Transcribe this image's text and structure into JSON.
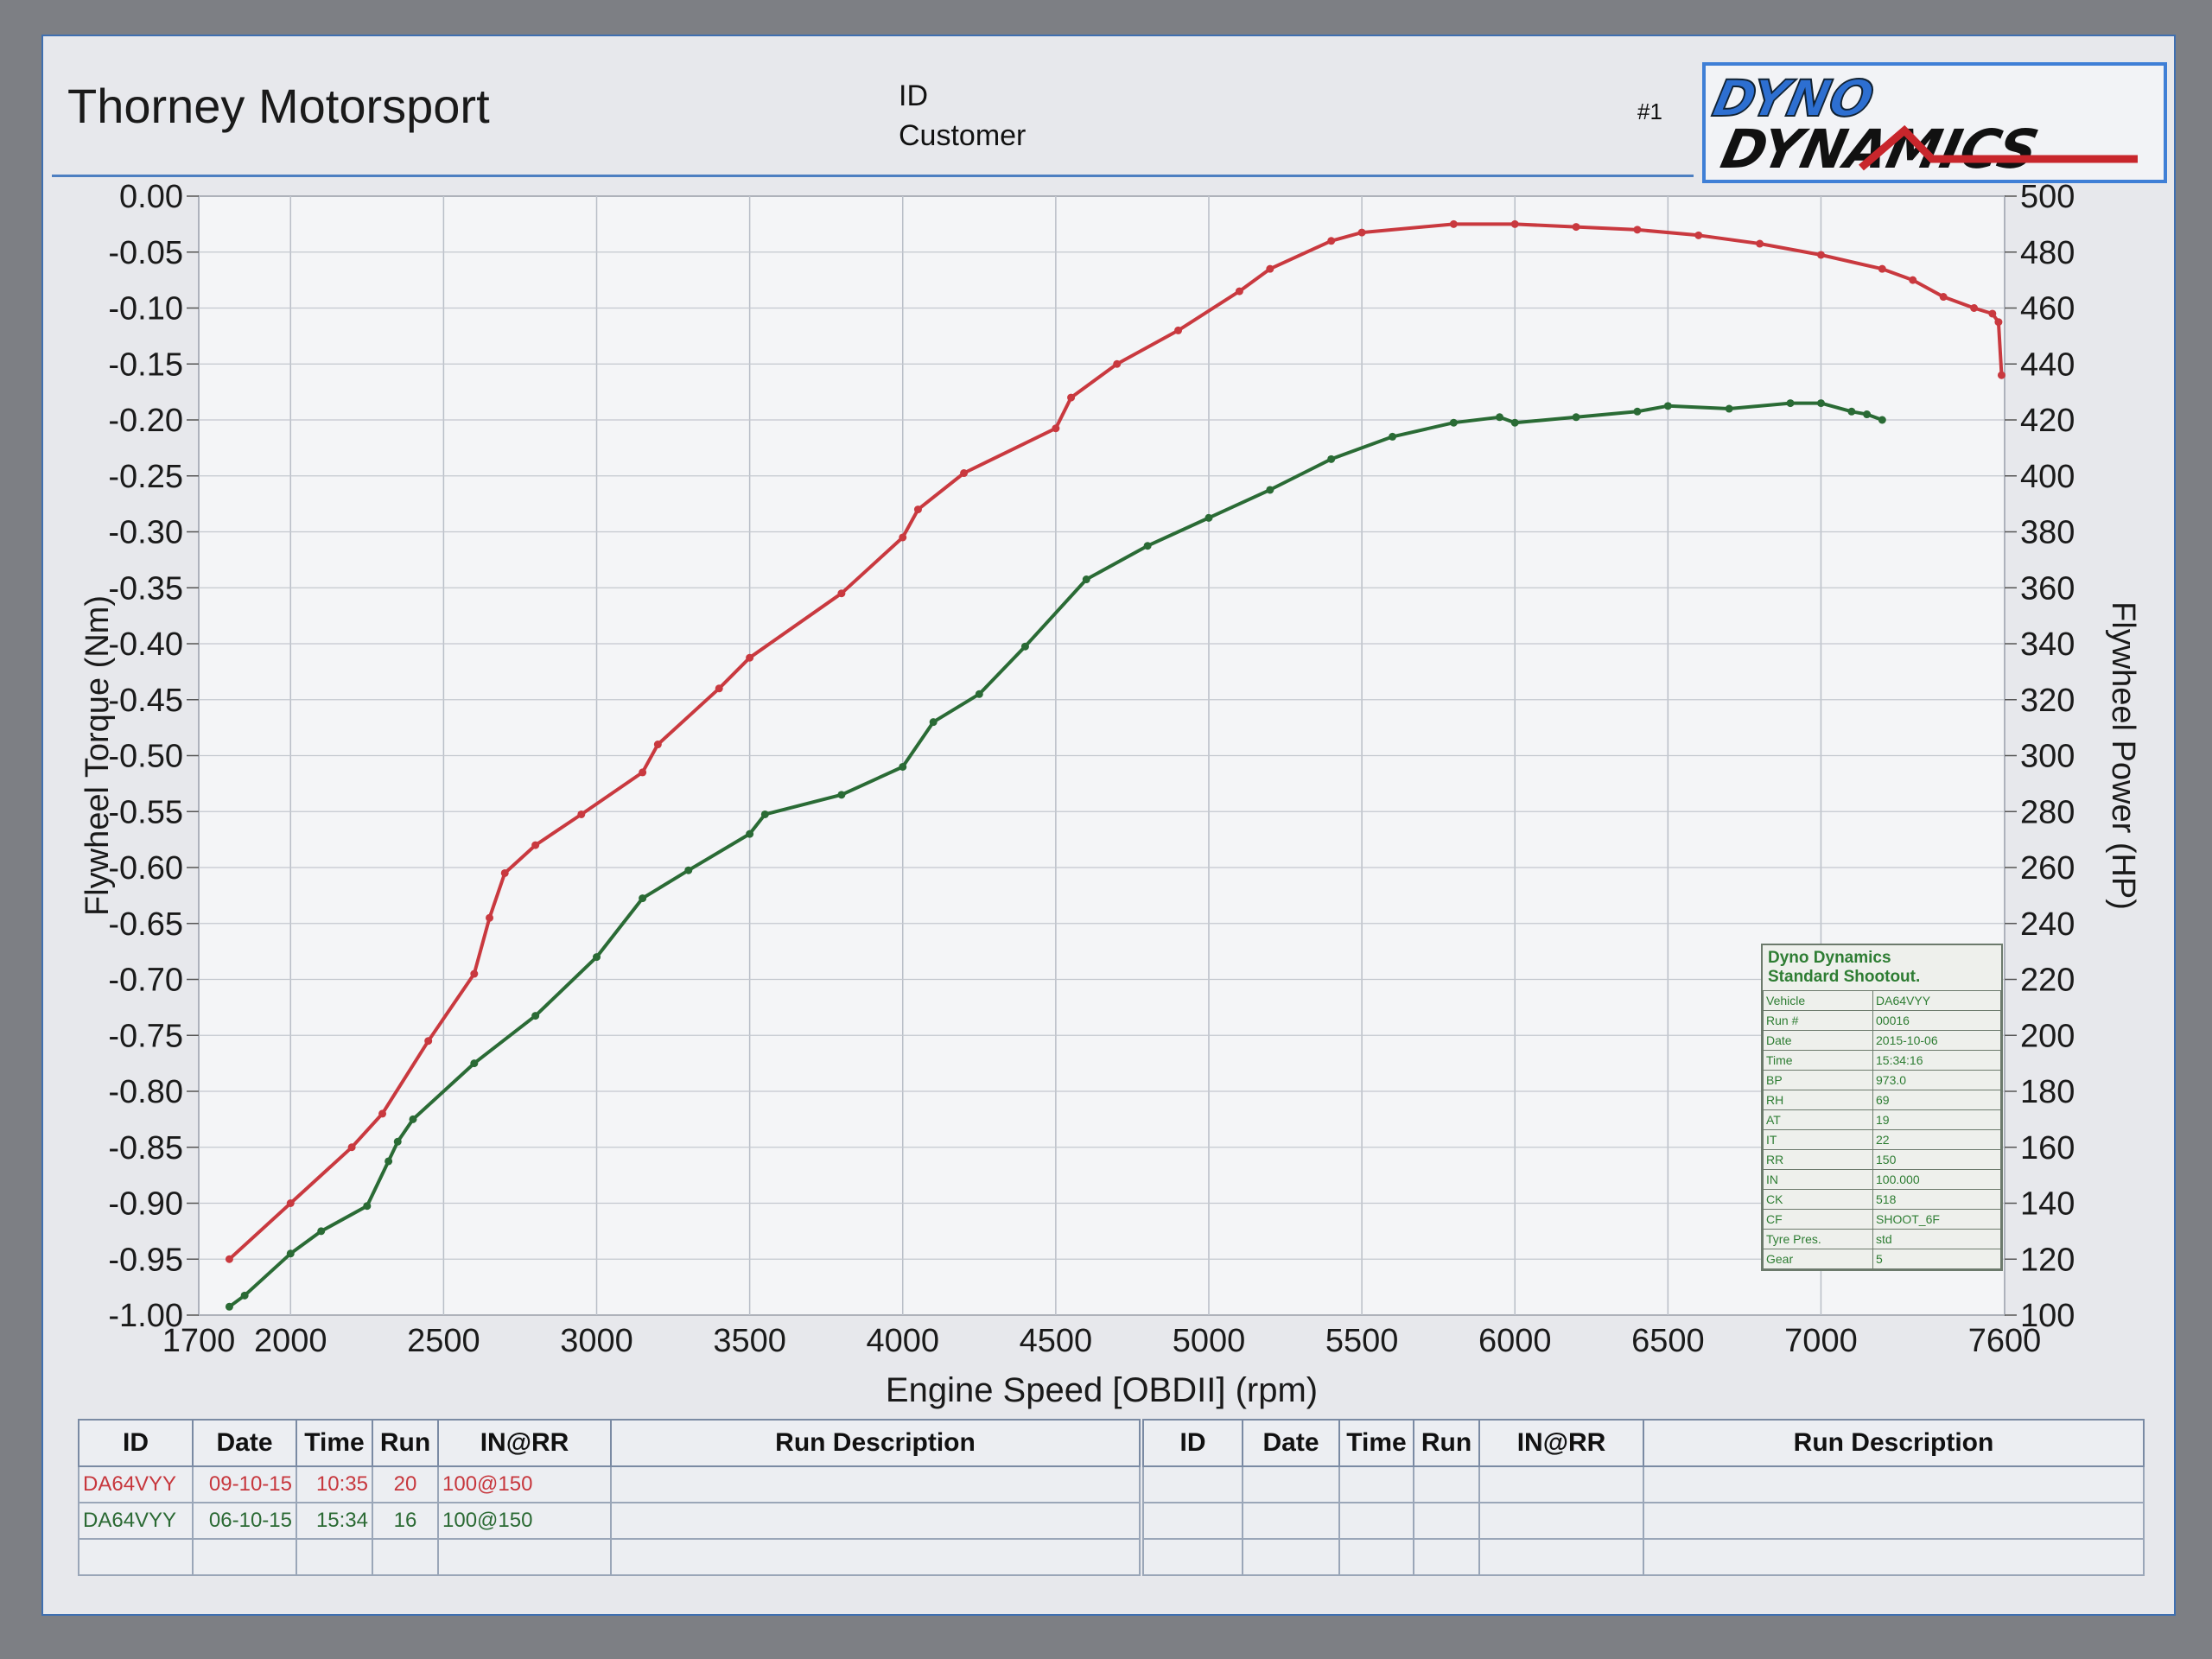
{
  "header": {
    "company": "Thorney Motorsport",
    "id_label": "ID",
    "customer_label": "Customer",
    "run_no": "#1",
    "logo_line1": "DYNO",
    "logo_line2": "DYNAMICS"
  },
  "chart_data": {
    "type": "line",
    "xlabel": "Engine Speed [OBDII] (rpm)",
    "ylabel_left": "Flywheel Torque (Nm)",
    "ylabel_right": "Flywheel Power (HP)",
    "xlim": [
      1700,
      7600
    ],
    "x_ticks": [
      1700,
      2000,
      2500,
      3000,
      3500,
      4000,
      4500,
      5000,
      5500,
      6000,
      6500,
      7000,
      7600
    ],
    "ylim_left": [
      -1.0,
      0.0
    ],
    "y_ticks_left": [
      "0.00",
      "-0.05",
      "-0.10",
      "-0.15",
      "-0.20",
      "-0.25",
      "-0.30",
      "-0.35",
      "-0.40",
      "-0.45",
      "-0.50",
      "-0.55",
      "-0.60",
      "-0.65",
      "-0.70",
      "-0.75",
      "-0.80",
      "-0.85",
      "-0.90",
      "-0.95",
      "-1.00"
    ],
    "ylim_right": [
      100,
      500
    ],
    "y_ticks_right": [
      500,
      480,
      460,
      440,
      420,
      400,
      380,
      360,
      340,
      320,
      300,
      280,
      260,
      240,
      220,
      200,
      180,
      160,
      140,
      120,
      100
    ],
    "grid": true,
    "series": [
      {
        "color": "#c9393f",
        "axis": "right",
        "x": [
          1800,
          2000,
          2200,
          2300,
          2450,
          2600,
          2650,
          2700,
          2800,
          2950,
          3150,
          3200,
          3400,
          3500,
          3800,
          4000,
          4050,
          4200,
          4500,
          4550,
          4700,
          4900,
          5100,
          5200,
          5400,
          5500,
          5800,
          6000,
          6200,
          6400,
          6600,
          6800,
          7000,
          7200,
          7300,
          7400,
          7500,
          7560,
          7580,
          7590
        ],
        "y": [
          120,
          140,
          160,
          172,
          198,
          222,
          242,
          258,
          268,
          279,
          294,
          304,
          324,
          335,
          358,
          378,
          388,
          401,
          417,
          428,
          440,
          452,
          466,
          474,
          484,
          487,
          490,
          490,
          489,
          488,
          486,
          483,
          479,
          474,
          470,
          464,
          460,
          458,
          455,
          436
        ]
      },
      {
        "color": "#2a6b35",
        "axis": "right",
        "x": [
          1800,
          1850,
          2000,
          2100,
          2250,
          2320,
          2350,
          2400,
          2600,
          2800,
          3000,
          3150,
          3300,
          3500,
          3550,
          3800,
          4000,
          4100,
          4250,
          4400,
          4600,
          4800,
          5000,
          5200,
          5400,
          5600,
          5800,
          5950,
          6000,
          6200,
          6400,
          6500,
          6700,
          6900,
          7000,
          7100,
          7150,
          7200
        ],
        "y": [
          103,
          107,
          122,
          130,
          139,
          155,
          162,
          170,
          190,
          207,
          228,
          249,
          259,
          272,
          279,
          286,
          296,
          312,
          322,
          339,
          363,
          375,
          385,
          395,
          406,
          414,
          419,
          421,
          419,
          421,
          423,
          425,
          424,
          426,
          426,
          423,
          422,
          420
        ]
      }
    ]
  },
  "infobox": {
    "title": "Dyno Dynamics\nStandard Shootout.",
    "rows": [
      {
        "k": "Vehicle",
        "v": "DA64VYY"
      },
      {
        "k": "Run #",
        "v": "00016"
      },
      {
        "k": "Date",
        "v": "2015-10-06"
      },
      {
        "k": "Time",
        "v": "15:34:16"
      },
      {
        "k": "BP",
        "v": "973.0"
      },
      {
        "k": "RH",
        "v": "69"
      },
      {
        "k": "AT",
        "v": "19"
      },
      {
        "k": "IT",
        "v": "22"
      },
      {
        "k": "RR",
        "v": "150"
      },
      {
        "k": "IN",
        "v": "100.000"
      },
      {
        "k": "CK",
        "v": "518"
      },
      {
        "k": "CF",
        "v": "SHOOT_6F"
      },
      {
        "k": "Tyre Pres.",
        "v": "std"
      },
      {
        "k": "Gear",
        "v": "5"
      }
    ]
  },
  "runs_table": {
    "headers": [
      "ID",
      "Date",
      "Time",
      "Run",
      "IN@RR",
      "Run Description"
    ],
    "rows": [
      {
        "color": "#c7373d",
        "cells": [
          "DA64VYY",
          "09-10-15",
          "10:35",
          "20",
          "100@150",
          ""
        ]
      },
      {
        "color": "#2b6a34",
        "cells": [
          "DA64VYY",
          "06-10-15",
          "15:34",
          "16",
          "100@150",
          ""
        ]
      },
      {
        "color": "#111111",
        "cells": [
          "",
          "",
          "",
          "",
          "",
          ""
        ]
      }
    ],
    "headers_right": [
      "ID",
      "Date",
      "Time",
      "Run",
      "IN@RR",
      "Run Description"
    ]
  }
}
